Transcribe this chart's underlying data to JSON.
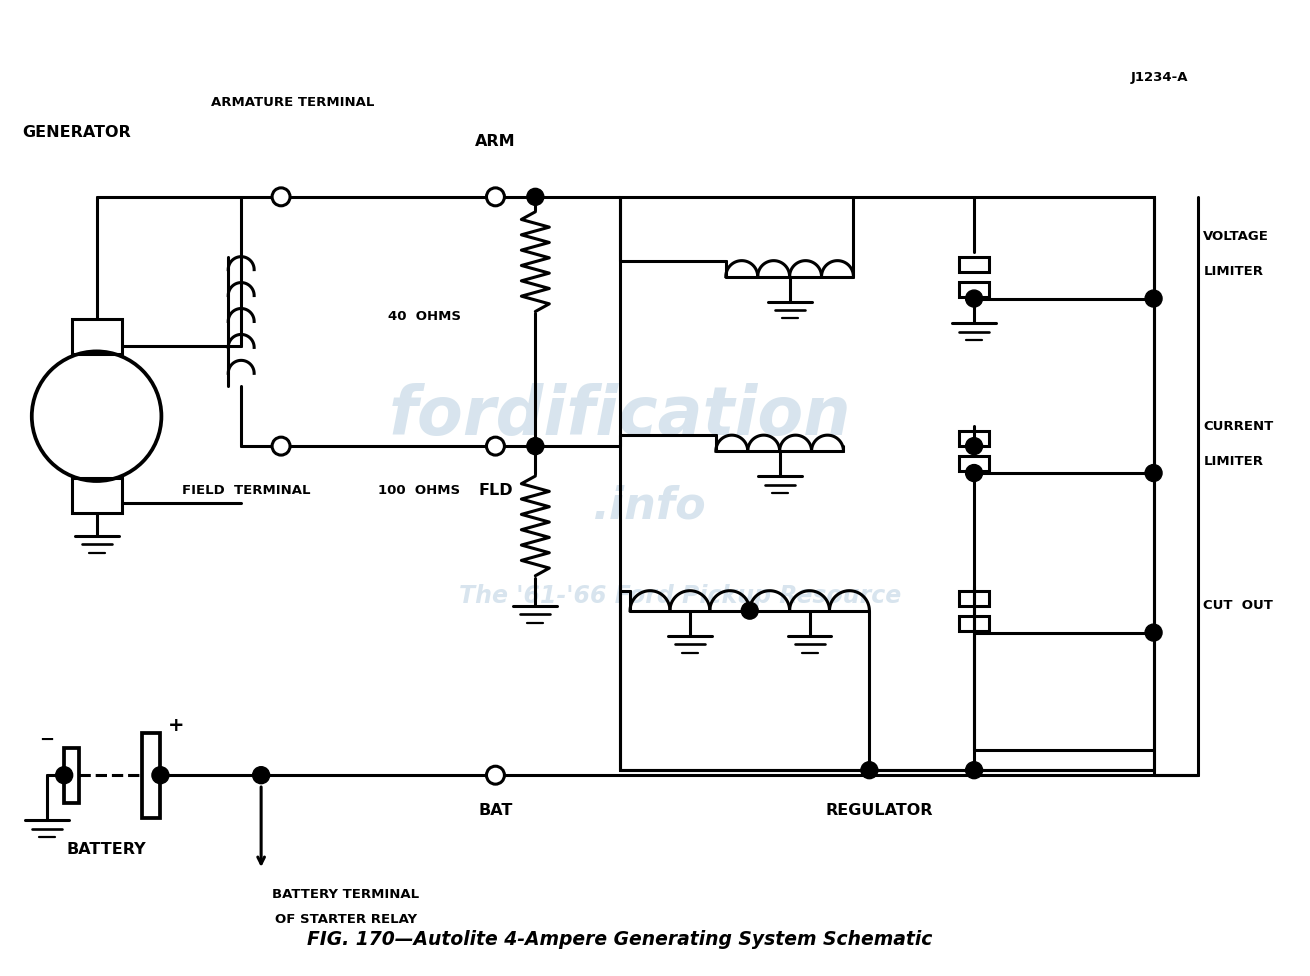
{
  "title": "FIG. 170—Autolite 4-Ampere Generating System Schematic",
  "figure_id": "J1234-A",
  "background_color": "#ffffff",
  "line_color": "#000000",
  "watermark_color": "#b8cfe0",
  "fig_width": 13.1,
  "fig_height": 9.76,
  "labels": {
    "generator": "GENERATOR",
    "armature_terminal": "ARMATURE TERMINAL",
    "arm": "ARM",
    "field_terminal": "FIELD  TERMINAL",
    "fld": "FLD",
    "bat": "BAT",
    "battery": "BATTERY",
    "battery_terminal_line1": "BATTERY TERMINAL",
    "battery_terminal_line2": "OF STARTER RELAY",
    "40ohms": "40  OHMS",
    "100ohms": "100  OHMS",
    "voltage_limiter_line1": "VOLTAGE",
    "voltage_limiter_line2": "LIMITER",
    "current_limiter_line1": "CURRENT",
    "current_limiter_line2": "LIMITER",
    "cut_out": "CUT  OUT",
    "regulator": "REGULATOR"
  }
}
